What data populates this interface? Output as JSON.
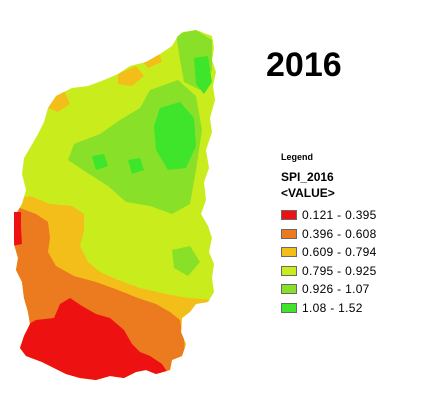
{
  "map_title": "2016",
  "legend": {
    "heading": "Legend",
    "layer": "SPI_2016",
    "field": "<VALUE>",
    "classes": [
      {
        "label": "0.121 - 0.395",
        "color": "#ee1111"
      },
      {
        "label": "0.396 - 0.608",
        "color": "#ec7a1e"
      },
      {
        "label": "0.609 - 0.794",
        "color": "#f4be1a"
      },
      {
        "label": "0.795 - 0.925",
        "color": "#c9ec1c"
      },
      {
        "label": "0.926 - 1.07",
        "color": "#88e128"
      },
      {
        "label": "1.08 - 1.52",
        "color": "#3ee52a"
      }
    ]
  }
}
